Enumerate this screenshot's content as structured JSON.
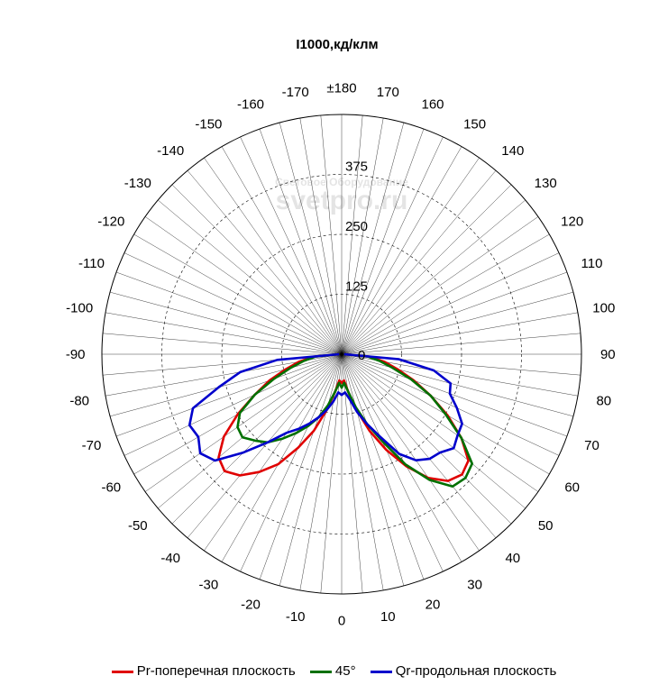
{
  "chart_data": {
    "type": "polar-line",
    "title": "I1000,кд/клм",
    "radial_max": 500,
    "radial_ticks": [
      0,
      125,
      250,
      375
    ],
    "radial_tick_labels": [
      "0",
      "125",
      "250",
      "375"
    ],
    "angle_labels": [
      "0",
      "10",
      "20",
      "30",
      "40",
      "50",
      "60",
      "70",
      "80",
      "90",
      "100",
      "110",
      "120",
      "130",
      "140",
      "150",
      "160",
      "170",
      "±180",
      "-170",
      "-160",
      "-150",
      "-140",
      "-130",
      "-120",
      "-110",
      "-100",
      "-90",
      "-80",
      "-70",
      "-60",
      "-50",
      "-40",
      "-30",
      "-20",
      "-10"
    ],
    "angle_values": [
      0,
      10,
      20,
      30,
      40,
      50,
      60,
      70,
      80,
      90,
      100,
      110,
      120,
      130,
      140,
      150,
      160,
      170,
      180,
      -170,
      -160,
      -150,
      -140,
      -130,
      -120,
      -110,
      -100,
      -90,
      -80,
      -70,
      -60,
      -50,
      -40,
      -30,
      -20,
      -10
    ],
    "series": [
      {
        "name": "Pr-поперечная плоскость",
        "color": "#e00000",
        "points": [
          [
            -90,
            5
          ],
          [
            -85,
            60
          ],
          [
            -80,
            90
          ],
          [
            -75,
            120
          ],
          [
            -70,
            160
          ],
          [
            -65,
            200
          ],
          [
            -60,
            250
          ],
          [
            -55,
            300
          ],
          [
            -50,
            335
          ],
          [
            -45,
            345
          ],
          [
            -40,
            330
          ],
          [
            -35,
            300
          ],
          [
            -30,
            265
          ],
          [
            -25,
            215
          ],
          [
            -20,
            170
          ],
          [
            -15,
            120
          ],
          [
            -10,
            80
          ],
          [
            -5,
            55
          ],
          [
            0,
            60
          ],
          [
            5,
            55
          ],
          [
            10,
            80
          ],
          [
            15,
            120
          ],
          [
            20,
            170
          ],
          [
            25,
            220
          ],
          [
            30,
            270
          ],
          [
            35,
            315
          ],
          [
            40,
            345
          ],
          [
            45,
            355
          ],
          [
            50,
            345
          ],
          [
            55,
            305
          ],
          [
            60,
            255
          ],
          [
            65,
            205
          ],
          [
            70,
            160
          ],
          [
            75,
            120
          ],
          [
            80,
            90
          ],
          [
            85,
            60
          ],
          [
            90,
            5
          ]
        ]
      },
      {
        "name": "45°",
        "color": "#007000",
        "points": [
          [
            -90,
            5
          ],
          [
            -85,
            55
          ],
          [
            -80,
            80
          ],
          [
            -75,
            110
          ],
          [
            -70,
            150
          ],
          [
            -65,
            200
          ],
          [
            -60,
            245
          ],
          [
            -55,
            265
          ],
          [
            -50,
            270
          ],
          [
            -45,
            255
          ],
          [
            -40,
            240
          ],
          [
            -35,
            215
          ],
          [
            -30,
            190
          ],
          [
            -25,
            165
          ],
          [
            -20,
            140
          ],
          [
            -15,
            110
          ],
          [
            -10,
            80
          ],
          [
            -5,
            60
          ],
          [
            0,
            70
          ],
          [
            5,
            60
          ],
          [
            10,
            80
          ],
          [
            15,
            115
          ],
          [
            20,
            155
          ],
          [
            25,
            200
          ],
          [
            30,
            265
          ],
          [
            35,
            320
          ],
          [
            40,
            360
          ],
          [
            45,
            365
          ],
          [
            50,
            355
          ],
          [
            55,
            305
          ],
          [
            60,
            250
          ],
          [
            65,
            205
          ],
          [
            70,
            155
          ],
          [
            75,
            110
          ],
          [
            80,
            80
          ],
          [
            85,
            55
          ],
          [
            90,
            5
          ]
        ]
      },
      {
        "name": "Qr-продольная плоскость",
        "color": "#0000cc",
        "points": [
          [
            -90,
            5
          ],
          [
            -85,
            135
          ],
          [
            -80,
            215
          ],
          [
            -75,
            265
          ],
          [
            -70,
            330
          ],
          [
            -65,
            350
          ],
          [
            -60,
            345
          ],
          [
            -55,
            360
          ],
          [
            -50,
            345
          ],
          [
            -45,
            290
          ],
          [
            -40,
            240
          ],
          [
            -35,
            200
          ],
          [
            -30,
            180
          ],
          [
            -25,
            160
          ],
          [
            -20,
            140
          ],
          [
            -15,
            120
          ],
          [
            -10,
            100
          ],
          [
            -5,
            80
          ],
          [
            0,
            85
          ],
          [
            5,
            80
          ],
          [
            10,
            95
          ],
          [
            15,
            125
          ],
          [
            20,
            155
          ],
          [
            25,
            190
          ],
          [
            30,
            240
          ],
          [
            35,
            270
          ],
          [
            40,
            285
          ],
          [
            45,
            290
          ],
          [
            50,
            305
          ],
          [
            55,
            295
          ],
          [
            60,
            290
          ],
          [
            65,
            265
          ],
          [
            70,
            240
          ],
          [
            75,
            235
          ],
          [
            80,
            195
          ],
          [
            85,
            120
          ],
          [
            90,
            5
          ]
        ]
      }
    ],
    "legend_position": "bottom",
    "watermark": [
      "Световое Оборудование",
      "svetpro.ru"
    ]
  }
}
